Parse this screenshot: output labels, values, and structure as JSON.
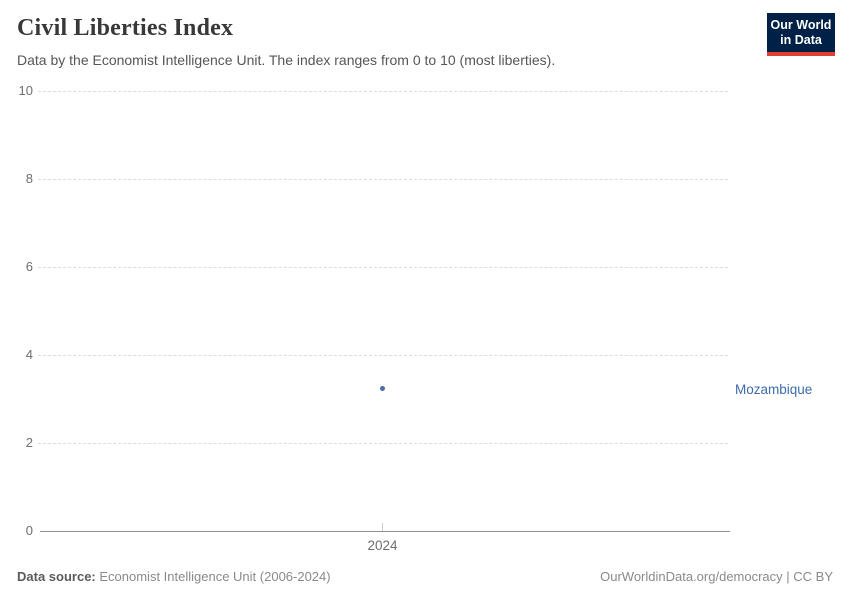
{
  "header": {
    "title": "Civil Liberties Index",
    "subtitle": "Data by the Economist Intelligence Unit. The index ranges from 0 to 10 (most liberties).",
    "logo": {
      "line1": "Our World",
      "line2": "in Data"
    }
  },
  "point": {
    "entity": "Mozambique",
    "year": "2024",
    "value": 3.24
  },
  "footer": {
    "source_label": "Data source:",
    "source_text": " Economist Intelligence Unit (2006-2024)",
    "link_text": "OurWorldinData.org/democracy | CC BY"
  },
  "colors": {
    "point_blue": "#4c6ca8",
    "entity_label_blue": "#3d6bac",
    "logo_navy": "#002147",
    "logo_red": "#e23d33",
    "gridline_gray": "#dcdcdc",
    "axis_gray": "#8f8f8f",
    "tick_text_gray": "#6e6e6e"
  },
  "chart_data": {
    "type": "scatter",
    "title": "Civil Liberties Index",
    "subtitle": "Data by the Economist Intelligence Unit. The index ranges from 0 to 10 (most liberties).",
    "series": [
      {
        "name": "Mozambique",
        "x": [
          2024
        ],
        "values": [
          3.24
        ]
      }
    ],
    "xlabel": "",
    "ylabel": "",
    "x_ticks": [
      "2024"
    ],
    "y_ticks": [
      "0",
      "2",
      "4",
      "6",
      "8",
      "10"
    ],
    "ylim": [
      0,
      10
    ],
    "grid": "horizontal dashed lines at even values, solid baseline at 0",
    "legend": "entity name labeled to the right of the plot in series color"
  }
}
